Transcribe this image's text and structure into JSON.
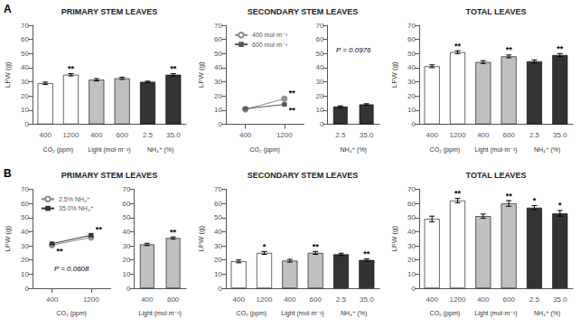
{
  "chart_data": [
    {
      "type": "bar",
      "panel": "A",
      "title": "PRIMARY STEM LEAVES",
      "ylabel": "LFW (g)",
      "groups": [
        {
          "label": "CO₂ (ppm)",
          "categories": [
            "400",
            "1200"
          ],
          "values": [
            29.0,
            35.0
          ],
          "errors": [
            0.8,
            0.8
          ],
          "color": "white",
          "annotations": [
            {
              "category": "1200",
              "text": "**"
            }
          ]
        },
        {
          "label": "Light (mol·m⁻²)",
          "categories": [
            "400",
            "600"
          ],
          "values": [
            31.5,
            32.5
          ],
          "errors": [
            0.8,
            0.8
          ],
          "color": "#c0c0c0"
        },
        {
          "label": "NH₄⁺ (%)",
          "categories": [
            "2.5",
            "35.0"
          ],
          "values": [
            30.0,
            35.0
          ],
          "errors": [
            0.5,
            0.8
          ],
          "color": "#333333",
          "annotations": [
            {
              "category": "35.0",
              "text": "**"
            }
          ]
        }
      ],
      "ylim": [
        0,
        70
      ],
      "yticks": [
        0,
        10,
        20,
        30,
        40,
        50,
        60,
        70
      ],
      "grid": false
    },
    {
      "type": "line",
      "panel": "A",
      "title": "SECONDARY STEM LEAVES",
      "ylabel": "LFW (g)",
      "xlabel": "CO₂ (ppm)",
      "categories": [
        "400",
        "1200"
      ],
      "series": [
        {
          "name": "400 mol·m⁻²",
          "color": "#888888",
          "marker": "open circle",
          "values": [
            10.5,
            18.0
          ],
          "errors": [
            0.5,
            0.5
          ],
          "annotations": [
            {
              "category": "1200",
              "text": "**"
            }
          ]
        },
        {
          "name": "600 mol·m⁻²",
          "color": "#555555",
          "marker": "square",
          "values": [
            11.0,
            14.0
          ],
          "errors": [
            0.5,
            0.5
          ],
          "annotations": [
            {
              "category": "1200",
              "text": "**"
            }
          ]
        }
      ],
      "legend": "upper left",
      "ylim": [
        0,
        70
      ],
      "yticks": [
        0,
        10,
        20,
        30,
        40,
        50,
        60,
        70
      ],
      "grid": false
    },
    {
      "type": "bar",
      "panel": "A",
      "xlabel": "NH₄⁺ (%)",
      "categories": [
        "2.5",
        "35.0"
      ],
      "values": [
        12.5,
        14.0
      ],
      "errors": [
        0.5,
        0.5
      ],
      "color": "#333333",
      "annotations": [
        {
          "text": "P = 0.0976"
        }
      ],
      "ylim": [
        0,
        70
      ],
      "yticks": [
        0,
        10,
        20,
        30,
        40,
        50,
        60,
        70
      ],
      "grid": false
    },
    {
      "type": "bar",
      "panel": "A",
      "title": "TOTAL LEAVES",
      "ylabel": "LFW (g)",
      "groups": [
        {
          "label": "CO₂ (ppm)",
          "categories": [
            "400",
            "1200"
          ],
          "values": [
            41.0,
            51.0
          ],
          "errors": [
            1.0,
            1.0
          ],
          "color": "white",
          "annotations": [
            {
              "category": "1200",
              "text": "**"
            }
          ]
        },
        {
          "label": "Light (mol·m⁻²)",
          "categories": [
            "400",
            "600"
          ],
          "values": [
            44.0,
            48.0
          ],
          "errors": [
            1.0,
            1.0
          ],
          "color": "#c0c0c0",
          "annotations": [
            {
              "category": "600",
              "text": "**"
            }
          ]
        },
        {
          "label": "NH₄⁺ (%)",
          "categories": [
            "2.5",
            "35.0"
          ],
          "values": [
            44.5,
            49.0
          ],
          "errors": [
            1.0,
            1.0
          ],
          "color": "#333333",
          "annotations": [
            {
              "category": "35.0",
              "text": "**"
            }
          ]
        }
      ],
      "ylim": [
        0,
        70
      ],
      "yticks": [
        0,
        10,
        20,
        30,
        40,
        50,
        60,
        70
      ],
      "grid": false
    },
    {
      "type": "line",
      "panel": "B",
      "title": "PRIMARY STEM LEAVES",
      "ylabel": "LFW (g)",
      "xlabel": "CO₂ (ppm)",
      "categories": [
        "400",
        "1200"
      ],
      "series": [
        {
          "name": "2.5% NH₄⁺",
          "color": "#888888",
          "marker": "open circle",
          "values": [
            30.5,
            36.0
          ],
          "errors": [
            0.5,
            0.8
          ],
          "annotations": [
            {
              "category": "400",
              "text": "**"
            }
          ]
        },
        {
          "name": "35.0% NH₄⁺",
          "color": "#333333",
          "marker": "square",
          "values": [
            31.5,
            37.5
          ],
          "errors": [
            0.5,
            0.8
          ],
          "annotations": [
            {
              "category": "1200",
              "text": "**"
            }
          ]
        }
      ],
      "annotations": [
        {
          "text": "P = 0.0608"
        }
      ],
      "legend": "upper left",
      "ylim": [
        0,
        70
      ],
      "yticks": [
        0,
        10,
        20,
        30,
        40,
        50,
        60,
        70
      ],
      "grid": false
    },
    {
      "type": "bar",
      "panel": "B",
      "xlabel": "Light (mol·m⁻²)",
      "categories": [
        "400",
        "600"
      ],
      "values": [
        31.0,
        35.5
      ],
      "errors": [
        0.8,
        0.8
      ],
      "color": "#c0c0c0",
      "annotations": [
        {
          "category": "600",
          "text": "**"
        }
      ],
      "ylim": [
        0,
        70
      ],
      "yticks": [
        0,
        10,
        20,
        30,
        40,
        50,
        60,
        70
      ],
      "grid": false
    },
    {
      "type": "bar",
      "panel": "B",
      "title": "SECONDARY STEM LEAVES",
      "ylabel": "LFW (g)",
      "groups": [
        {
          "label": "CO₂ (ppm)",
          "categories": [
            "400",
            "1200"
          ],
          "values": [
            19.0,
            25.0
          ],
          "errors": [
            1.0,
            1.0
          ],
          "color": "white",
          "annotations": [
            {
              "category": "1200",
              "text": "*"
            }
          ]
        },
        {
          "label": "Light (mol·m⁻²)",
          "categories": [
            "400",
            "600"
          ],
          "values": [
            19.5,
            25.0
          ],
          "errors": [
            1.0,
            1.0
          ],
          "color": "#c0c0c0",
          "annotations": [
            {
              "category": "600",
              "text": "**"
            }
          ]
        },
        {
          "label": "NH₄⁺ (%)",
          "categories": [
            "2.5",
            "35.0"
          ],
          "values": [
            24.0,
            20.0
          ],
          "errors": [
            0.8,
            0.8
          ],
          "color": "#333333",
          "annotations": [
            {
              "category": "35.0",
              "text": "**"
            }
          ]
        }
      ],
      "ylim": [
        0,
        70
      ],
      "yticks": [
        0,
        10,
        20,
        30,
        40,
        50,
        60,
        70
      ],
      "grid": false
    },
    {
      "type": "bar",
      "panel": "B",
      "title": "TOTAL LEAVES",
      "ylabel": "LFW (g)",
      "groups": [
        {
          "label": "CO₂ (ppm)",
          "categories": [
            "400",
            "1200"
          ],
          "values": [
            49.0,
            62.0
          ],
          "errors": [
            2.0,
            1.5
          ],
          "color": "white",
          "annotations": [
            {
              "category": "1200",
              "text": "**"
            }
          ]
        },
        {
          "label": "Light (mol·m⁻²)",
          "categories": [
            "400",
            "600"
          ],
          "values": [
            51.0,
            60.0
          ],
          "errors": [
            1.5,
            2.0
          ],
          "color": "#c0c0c0",
          "annotations": [
            {
              "category": "600",
              "text": "**"
            }
          ]
        },
        {
          "label": "NH₄⁺ (%)",
          "categories": [
            "2.5",
            "35.0"
          ],
          "values": [
            57.0,
            53.0
          ],
          "errors": [
            1.5,
            2.0
          ],
          "color": "#333333",
          "annotations": [
            {
              "category": "2.5",
              "text": "*"
            },
            {
              "category": "35.0",
              "text": "*"
            }
          ]
        }
      ],
      "ylim": [
        0,
        70
      ],
      "yticks": [
        0,
        10,
        20,
        30,
        40,
        50,
        60,
        70
      ],
      "grid": false
    }
  ]
}
